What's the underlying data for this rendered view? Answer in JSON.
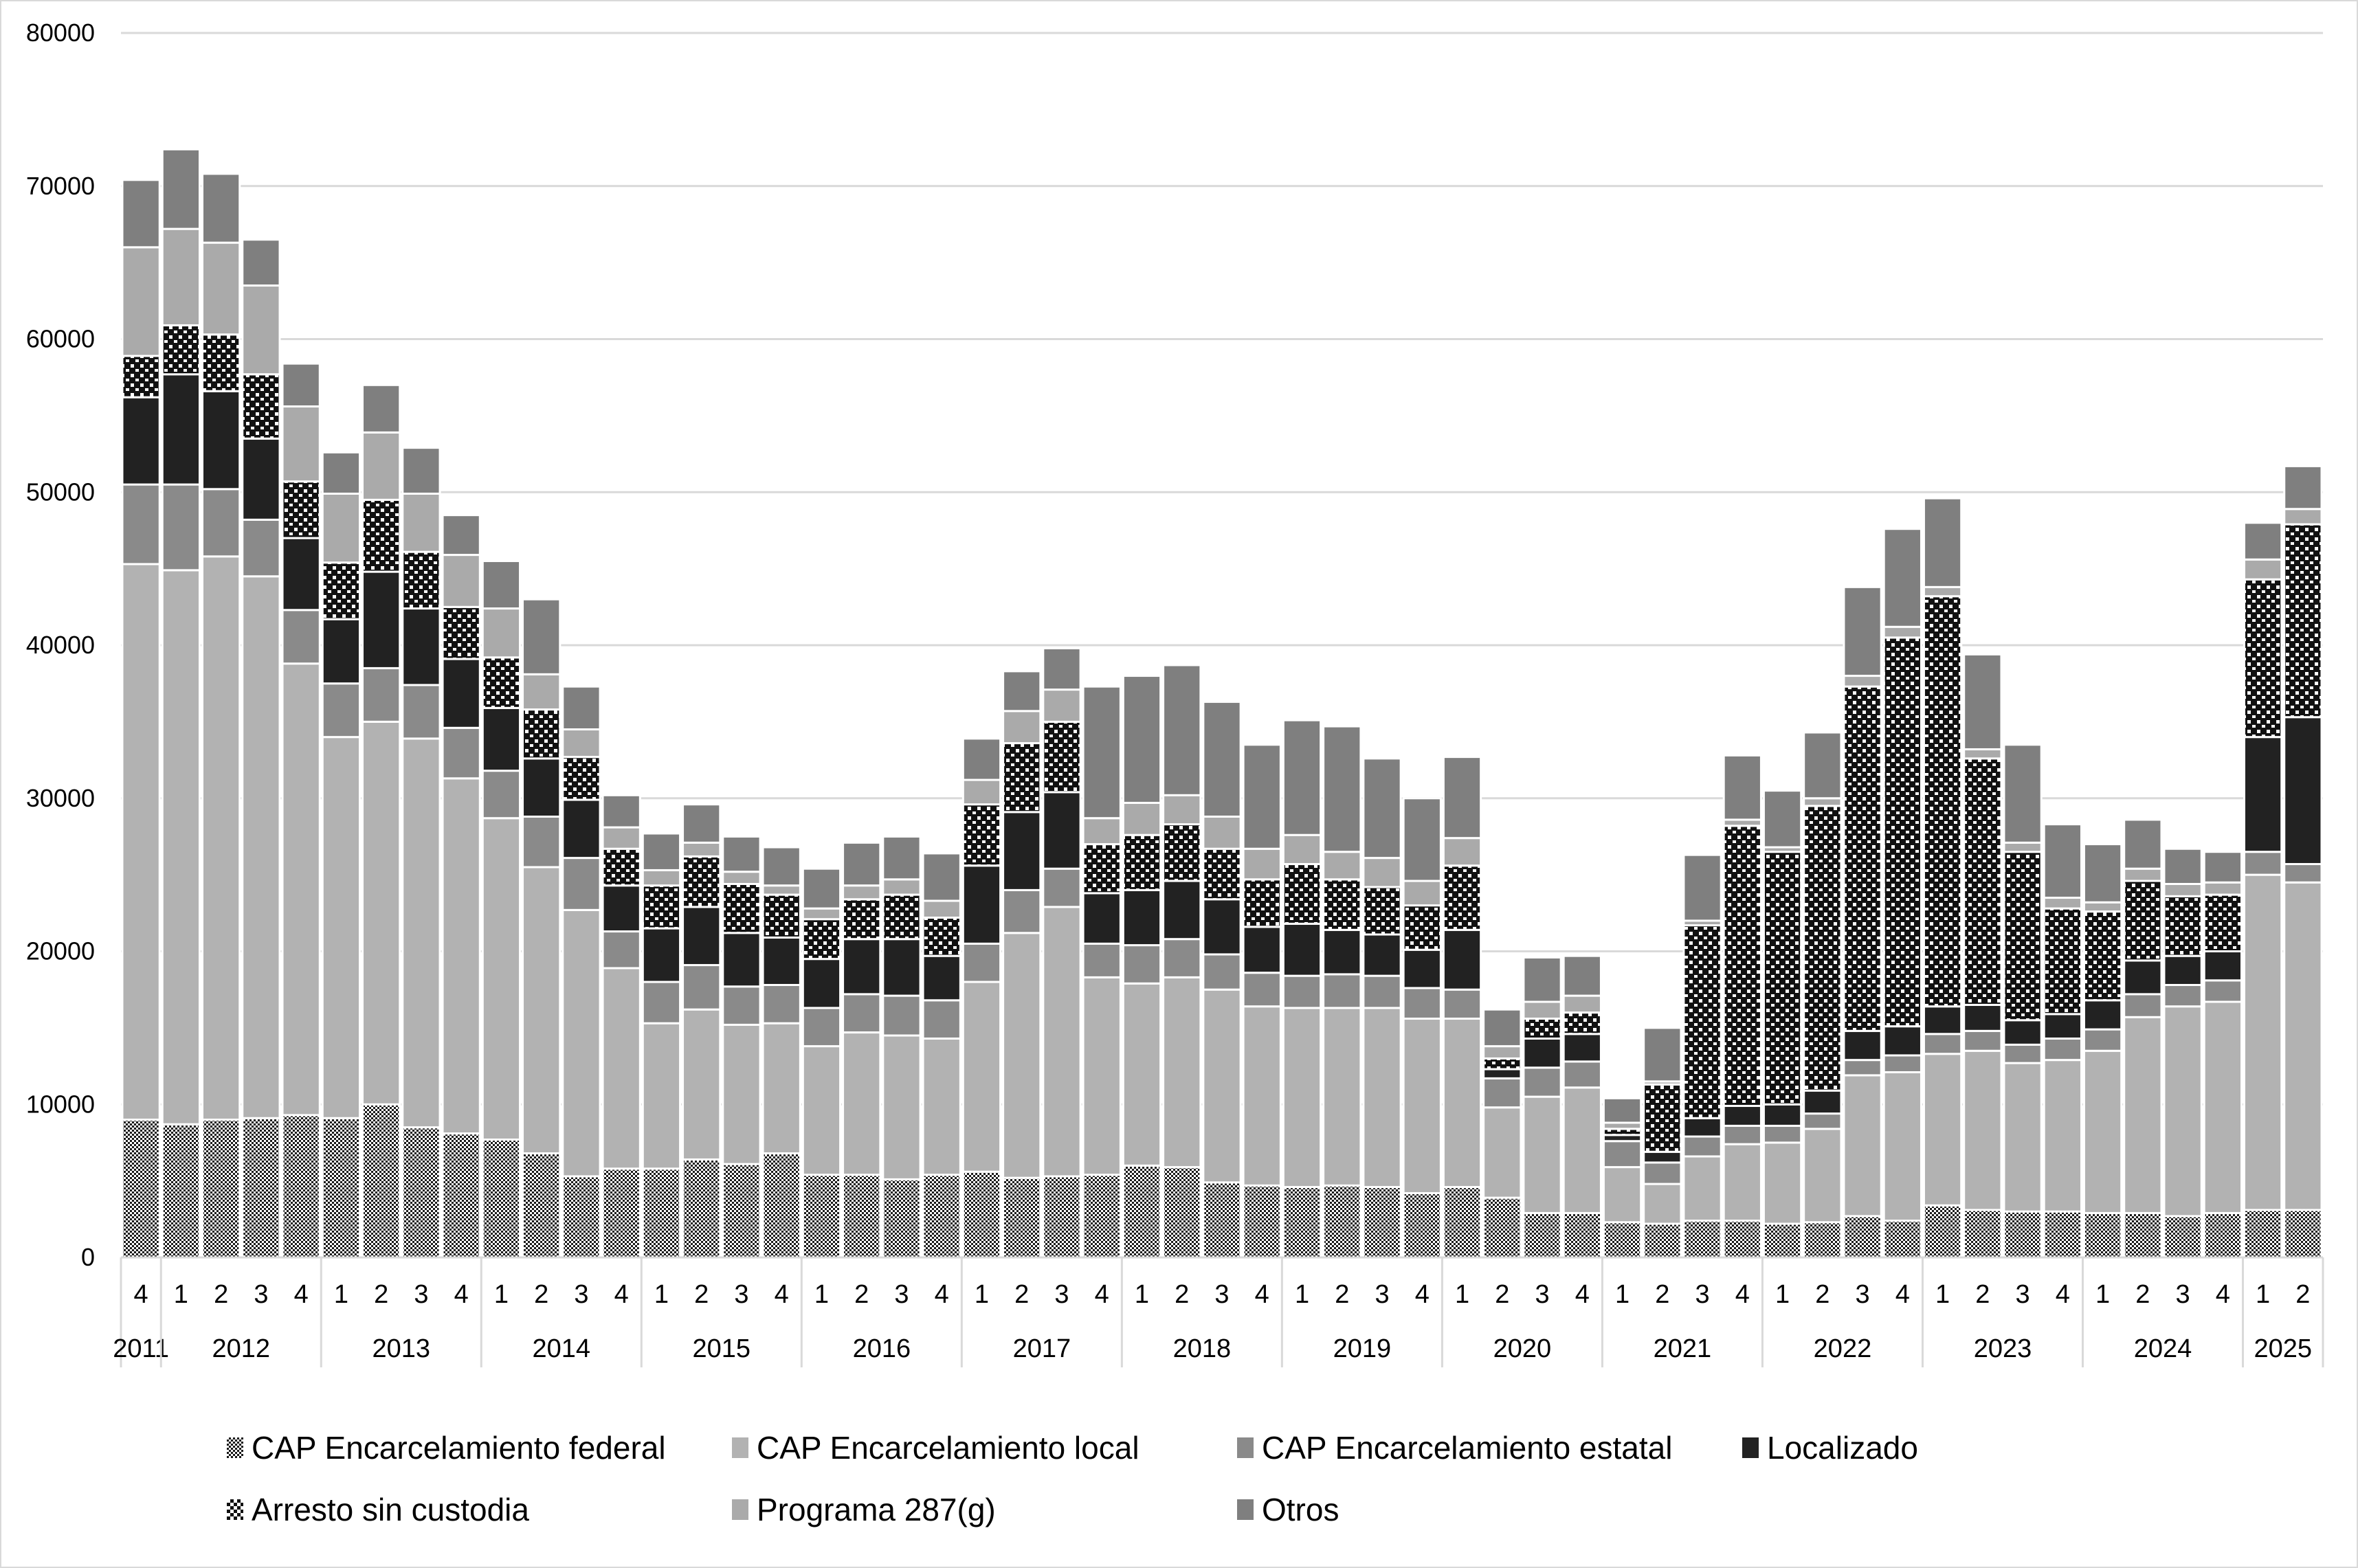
{
  "chart_data": {
    "type": "bar",
    "stacked": true,
    "title": "",
    "xlabel": "",
    "ylabel": "",
    "ylim": [
      0,
      80000
    ],
    "yticks": [
      0,
      10000,
      20000,
      30000,
      40000,
      50000,
      60000,
      70000,
      80000
    ],
    "grid": true,
    "legend_position": "bottom",
    "quarters": [
      "4",
      "1",
      "2",
      "3",
      "4",
      "1",
      "2",
      "3",
      "4",
      "1",
      "2",
      "3",
      "4",
      "1",
      "2",
      "3",
      "4",
      "1",
      "2",
      "3",
      "4",
      "1",
      "2",
      "3",
      "4",
      "1",
      "2",
      "3",
      "4",
      "1",
      "2",
      "3",
      "4",
      "1",
      "2",
      "3",
      "4",
      "1",
      "2",
      "3",
      "4",
      "1",
      "2",
      "3",
      "4",
      "1",
      "2",
      "3",
      "4",
      "1",
      "2",
      "3",
      "4",
      "1",
      "2"
    ],
    "years": [
      {
        "label": "2011",
        "count": 1
      },
      {
        "label": "2012",
        "count": 4
      },
      {
        "label": "2013",
        "count": 4
      },
      {
        "label": "2014",
        "count": 4
      },
      {
        "label": "2015",
        "count": 4
      },
      {
        "label": "2016",
        "count": 4
      },
      {
        "label": "2017",
        "count": 4
      },
      {
        "label": "2018",
        "count": 4
      },
      {
        "label": "2019",
        "count": 4
      },
      {
        "label": "2020",
        "count": 4
      },
      {
        "label": "2021",
        "count": 4
      },
      {
        "label": "2022",
        "count": 4
      },
      {
        "label": "2023",
        "count": 4
      },
      {
        "label": "2024",
        "count": 4
      },
      {
        "label": "2025",
        "count": 2
      }
    ],
    "series": [
      {
        "name": "CAP Encarcelamiento federal",
        "fill": "pattern-dense",
        "values": [
          9000,
          8700,
          9000,
          9100,
          9300,
          9100,
          10000,
          8500,
          8100,
          7700,
          6800,
          5300,
          5800,
          5800,
          6400,
          6100,
          6800,
          5400,
          5400,
          5100,
          5400,
          5600,
          5200,
          5300,
          5400,
          6000,
          5900,
          4900,
          4700,
          4600,
          4700,
          4600,
          4200,
          4600,
          3900,
          2900,
          2900,
          2300,
          2200,
          2400,
          2400,
          2200,
          2300,
          2700,
          2400,
          3400,
          3100,
          3000,
          3000,
          2900,
          2900,
          2700,
          2900,
          3100,
          3100
        ]
      },
      {
        "name": "CAP Encarcelamiento local",
        "fill": "#b2b2b2",
        "values": [
          36300,
          36200,
          36800,
          35400,
          29500,
          24900,
          25000,
          25400,
          23200,
          21000,
          18700,
          17400,
          13100,
          9500,
          9800,
          9100,
          8500,
          8400,
          9300,
          9400,
          8900,
          12400,
          16000,
          17600,
          12900,
          11900,
          12400,
          12600,
          11700,
          11700,
          11600,
          11700,
          11400,
          11000,
          5900,
          7600,
          8200,
          3600,
          2600,
          4200,
          5000,
          5300,
          6100,
          9200,
          9700,
          9900,
          10400,
          9700,
          9900,
          10600,
          12800,
          13700,
          13800,
          21900,
          21400
        ]
      },
      {
        "name": "CAP Encarcelamiento estatal",
        "fill": "#8a8a8a",
        "values": [
          5200,
          5600,
          4400,
          3700,
          3500,
          3500,
          3500,
          3500,
          3300,
          3100,
          3300,
          3400,
          2400,
          2700,
          2900,
          2500,
          2500,
          2500,
          2500,
          2600,
          2500,
          2500,
          2800,
          2500,
          2200,
          2500,
          2500,
          2300,
          2200,
          2100,
          2200,
          2100,
          2000,
          1900,
          1900,
          1900,
          1700,
          1700,
          1400,
          1300,
          1200,
          1100,
          1000,
          1000,
          1100,
          1300,
          1300,
          1200,
          1400,
          1400,
          1500,
          1400,
          1400,
          1500,
          1200
        ]
      },
      {
        "name": "Localizado",
        "fill": "#222222",
        "values": [
          5700,
          7200,
          6400,
          5300,
          4700,
          4200,
          6300,
          5000,
          4500,
          4100,
          3800,
          3800,
          3000,
          3500,
          3800,
          3500,
          3100,
          3200,
          3600,
          3700,
          2900,
          5100,
          5100,
          5000,
          3300,
          3600,
          3800,
          3600,
          3000,
          3400,
          2900,
          2700,
          2500,
          3900,
          600,
          1900,
          1800,
          400,
          700,
          1200,
          1300,
          1400,
          1500,
          1900,
          1900,
          1800,
          1700,
          1600,
          1600,
          1900,
          2200,
          1900,
          1900,
          7500,
          9600
        ]
      },
      {
        "name": "Arresto sin custodia",
        "fill": "pattern-open",
        "values": [
          2700,
          3200,
          3700,
          4200,
          3700,
          3700,
          4700,
          3700,
          3400,
          3300,
          3200,
          2800,
          2400,
          2800,
          3300,
          3200,
          2800,
          2600,
          2600,
          2900,
          2500,
          4000,
          4500,
          4600,
          3200,
          3600,
          3700,
          3300,
          3100,
          3900,
          3300,
          3100,
          2900,
          4200,
          700,
          1300,
          1400,
          400,
          4400,
          12600,
          18300,
          16500,
          18600,
          22500,
          25400,
          26800,
          16100,
          11000,
          6900,
          5800,
          5200,
          3900,
          3700,
          10300,
          12600
        ]
      },
      {
        "name": "Programa 287(g)",
        "fill": "#aaaaaa",
        "values": [
          7100,
          6300,
          6000,
          5800,
          4900,
          4500,
          4400,
          3800,
          3400,
          3200,
          2300,
          1800,
          1400,
          1000,
          900,
          800,
          600,
          700,
          900,
          1000,
          1100,
          1600,
          2100,
          2100,
          1700,
          2100,
          1900,
          2100,
          2000,
          1900,
          1800,
          1900,
          1600,
          1800,
          800,
          1100,
          1100,
          400,
          200,
          300,
          400,
          300,
          500,
          700,
          700,
          600,
          600,
          600,
          700,
          600,
          800,
          800,
          800,
          1300,
          1000
        ]
      },
      {
        "name": "Otros",
        "fill": "#7f7f7f",
        "values": [
          4400,
          5200,
          4500,
          3000,
          2800,
          2700,
          3100,
          3000,
          2600,
          3100,
          4900,
          2800,
          2100,
          2400,
          2500,
          2300,
          2500,
          2600,
          2800,
          2800,
          3100,
          2700,
          2600,
          2700,
          8600,
          8300,
          8500,
          7500,
          6800,
          7500,
          8200,
          6500,
          5400,
          5300,
          2400,
          2900,
          2600,
          1600,
          3500,
          4300,
          4200,
          3700,
          4300,
          5800,
          6400,
          5800,
          6200,
          6400,
          4800,
          3800,
          3200,
          2300,
          2000,
          2400,
          2800
        ]
      }
    ]
  },
  "legend": {
    "items": [
      {
        "label": "CAP Encarcelamiento federal"
      },
      {
        "label": "CAP Encarcelamiento local"
      },
      {
        "label": "CAP Encarcelamiento estatal"
      },
      {
        "label": "Localizado"
      },
      {
        "label": "Arresto sin custodia"
      },
      {
        "label": "Programa 287(g)"
      },
      {
        "label": "Otros"
      }
    ]
  }
}
